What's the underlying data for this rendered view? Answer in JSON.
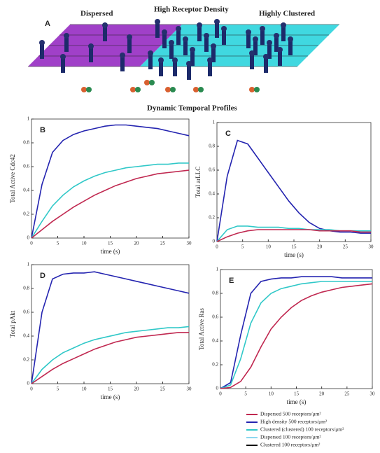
{
  "diagram": {
    "label": "A",
    "titles": [
      "Dispersed",
      "High Receptor Density",
      "Highly Clustered"
    ],
    "caption": "Dynamic Temporal Profiles"
  },
  "legend": [
    {
      "label": "Dispersed 500 receptors/μm²",
      "color": "#c02850"
    },
    {
      "label": "High density 500 receptors/μm²",
      "color": "#2424b0"
    },
    {
      "label": "Clustered (clustered) 100 receptors/μm²",
      "color": "#30c8c8"
    },
    {
      "label": "Dispersed 100 receptors/μm²",
      "color": "#8cd8f0"
    },
    {
      "label": "Clustered 100 receptors/μm²",
      "color": "#000000"
    }
  ],
  "chart_data": [
    {
      "type": "line",
      "panel": "B",
      "ylabel": "Total Active Cdc42",
      "xlabel": "time (s)",
      "x": [
        0,
        2,
        4,
        6,
        8,
        10,
        12,
        14,
        16,
        18,
        20,
        22,
        24,
        26,
        28,
        30
      ],
      "xlim": [
        0,
        30
      ],
      "xticks": [
        0,
        5,
        10,
        15,
        20,
        25,
        30
      ],
      "ylim": [
        0,
        1
      ],
      "yticks": [
        0,
        0.2,
        0.4,
        0.6,
        0.8,
        1
      ],
      "series": [
        {
          "color": "#2424b0",
          "values": [
            0,
            0.45,
            0.72,
            0.82,
            0.87,
            0.9,
            0.92,
            0.94,
            0.95,
            0.95,
            0.94,
            0.93,
            0.92,
            0.9,
            0.88,
            0.86
          ]
        },
        {
          "color": "#30c8c8",
          "values": [
            0,
            0.14,
            0.27,
            0.36,
            0.43,
            0.48,
            0.52,
            0.55,
            0.57,
            0.59,
            0.6,
            0.61,
            0.62,
            0.62,
            0.63,
            0.63
          ]
        },
        {
          "color": "#c02850",
          "values": [
            0,
            0.07,
            0.14,
            0.2,
            0.26,
            0.31,
            0.36,
            0.4,
            0.44,
            0.47,
            0.5,
            0.52,
            0.54,
            0.55,
            0.56,
            0.57
          ]
        }
      ]
    },
    {
      "type": "line",
      "panel": "C",
      "ylabel": "Total arLLC",
      "xlabel": "time (s)",
      "x": [
        0,
        2,
        4,
        6,
        8,
        10,
        12,
        14,
        16,
        18,
        20,
        22,
        24,
        26,
        28,
        30
      ],
      "xlim": [
        0,
        30
      ],
      "xticks": [
        0,
        5,
        10,
        15,
        20,
        25,
        30
      ],
      "ylim": [
        0,
        1
      ],
      "yticks": [
        0,
        0.2,
        0.4,
        0.6,
        0.8,
        1
      ],
      "series": [
        {
          "color": "#2424b0",
          "values": [
            0,
            0.55,
            0.85,
            0.82,
            0.7,
            0.58,
            0.46,
            0.34,
            0.24,
            0.16,
            0.11,
            0.09,
            0.08,
            0.08,
            0.07,
            0.07
          ]
        },
        {
          "color": "#30c8c8",
          "values": [
            0,
            0.1,
            0.13,
            0.13,
            0.12,
            0.12,
            0.12,
            0.11,
            0.11,
            0.1,
            0.1,
            0.1,
            0.09,
            0.09,
            0.09,
            0.09
          ]
        },
        {
          "color": "#c02850",
          "values": [
            0,
            0.04,
            0.07,
            0.09,
            0.1,
            0.1,
            0.1,
            0.1,
            0.1,
            0.1,
            0.09,
            0.09,
            0.09,
            0.09,
            0.08,
            0.08
          ]
        }
      ]
    },
    {
      "type": "line",
      "panel": "D",
      "ylabel": "Total pAkt",
      "xlabel": "time (s)",
      "x": [
        0,
        2,
        4,
        6,
        8,
        10,
        12,
        14,
        16,
        18,
        20,
        22,
        24,
        26,
        28,
        30
      ],
      "xlim": [
        0,
        30
      ],
      "xticks": [
        0,
        5,
        10,
        15,
        20,
        25,
        30
      ],
      "ylim": [
        0,
        1
      ],
      "yticks": [
        0,
        0.2,
        0.4,
        0.6,
        0.8,
        1
      ],
      "series": [
        {
          "color": "#2424b0",
          "values": [
            0,
            0.6,
            0.88,
            0.92,
            0.93,
            0.93,
            0.94,
            0.92,
            0.9,
            0.88,
            0.86,
            0.84,
            0.82,
            0.8,
            0.78,
            0.76
          ]
        },
        {
          "color": "#30c8c8",
          "values": [
            0,
            0.12,
            0.2,
            0.26,
            0.3,
            0.34,
            0.37,
            0.39,
            0.41,
            0.43,
            0.44,
            0.45,
            0.46,
            0.47,
            0.47,
            0.48
          ]
        },
        {
          "color": "#c02850",
          "values": [
            0,
            0.06,
            0.12,
            0.17,
            0.21,
            0.25,
            0.29,
            0.32,
            0.35,
            0.37,
            0.39,
            0.4,
            0.41,
            0.42,
            0.43,
            0.43
          ]
        }
      ]
    },
    {
      "type": "line",
      "panel": "E",
      "ylabel": "Total Active Ras",
      "xlabel": "time (s)",
      "x": [
        0,
        2,
        4,
        6,
        8,
        10,
        12,
        14,
        16,
        18,
        20,
        22,
        24,
        26,
        28,
        30
      ],
      "xlim": [
        0,
        30
      ],
      "xticks": [
        0,
        5,
        10,
        15,
        20,
        25,
        30
      ],
      "ylim": [
        0,
        1
      ],
      "yticks": [
        0,
        0.2,
        0.4,
        0.6,
        0.8,
        1
      ],
      "series": [
        {
          "color": "#2424b0",
          "values": [
            0,
            0.05,
            0.45,
            0.8,
            0.9,
            0.92,
            0.93,
            0.93,
            0.94,
            0.94,
            0.94,
            0.94,
            0.93,
            0.93,
            0.93,
            0.93
          ]
        },
        {
          "color": "#30c8c8",
          "values": [
            0,
            0.03,
            0.25,
            0.55,
            0.72,
            0.8,
            0.84,
            0.86,
            0.88,
            0.89,
            0.9,
            0.9,
            0.9,
            0.9,
            0.9,
            0.9
          ]
        },
        {
          "color": "#c02850",
          "values": [
            0,
            0.01,
            0.06,
            0.18,
            0.35,
            0.5,
            0.6,
            0.68,
            0.74,
            0.78,
            0.81,
            0.83,
            0.85,
            0.86,
            0.87,
            0.88
          ]
        }
      ]
    }
  ]
}
